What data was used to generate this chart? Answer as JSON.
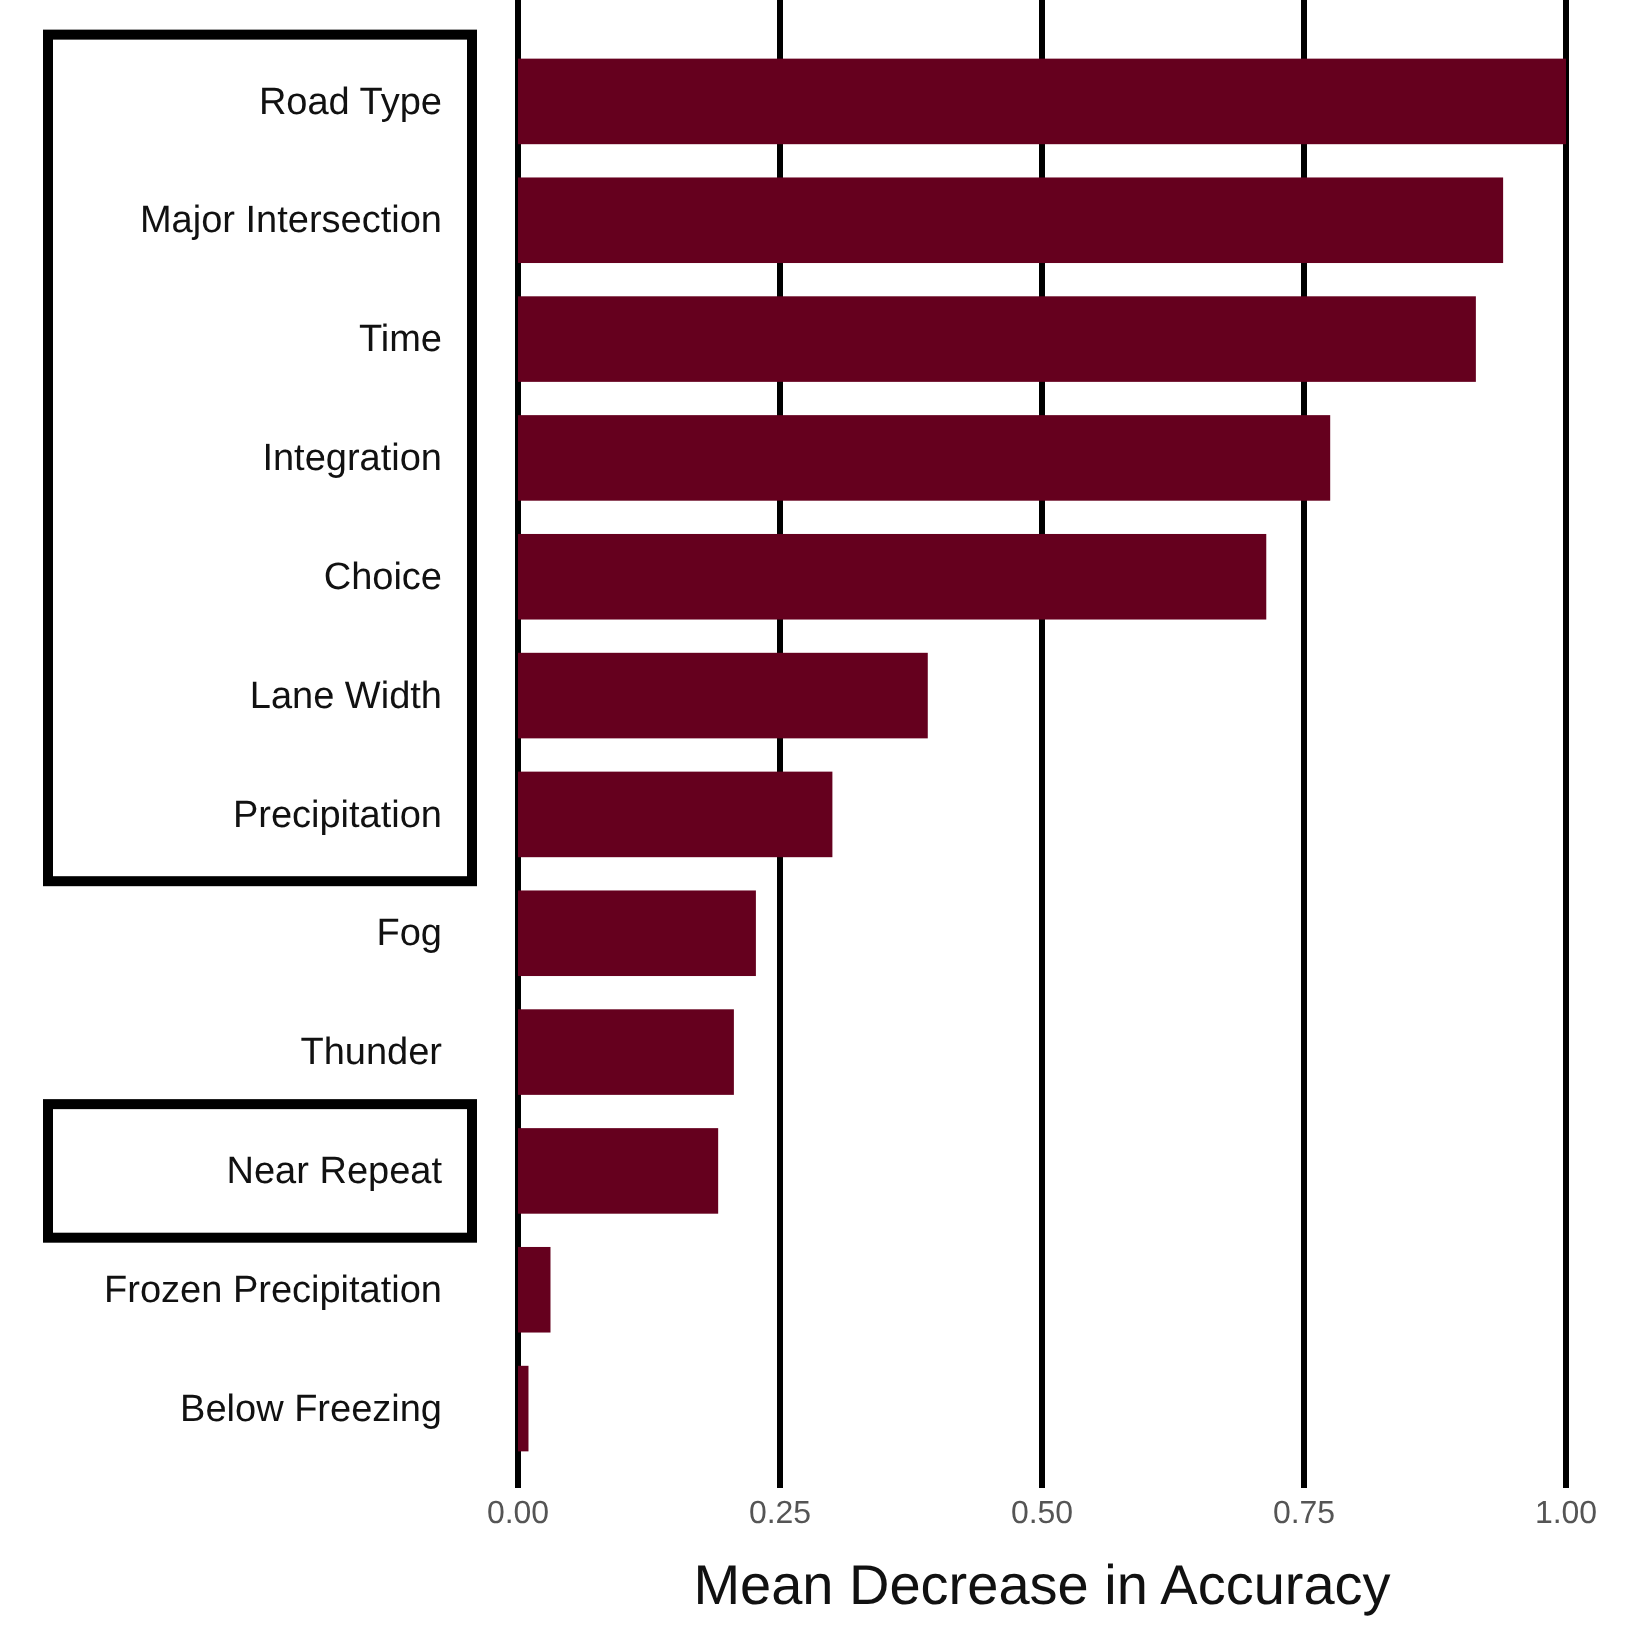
{
  "chart_data": {
    "type": "bar",
    "orientation": "horizontal",
    "xlabel": "Mean Decrease in Accuracy",
    "categories": [
      "Road Type",
      "Major Intersection",
      "Time",
      "Integration",
      "Choice",
      "Lane Width",
      "Precipitation",
      "Fog",
      "Thunder",
      "Near Repeat",
      "Frozen Precipitation",
      "Below Freezing"
    ],
    "values": [
      1.0,
      0.94,
      0.914,
      0.775,
      0.714,
      0.391,
      0.3,
      0.227,
      0.206,
      0.191,
      0.031,
      0.01
    ],
    "color": "#65001e",
    "xlim": [
      0,
      1
    ],
    "xticks": [
      {
        "value": 0,
        "label": "0.00"
      },
      {
        "value": 0.25,
        "label": "0.25"
      },
      {
        "value": 0.5,
        "label": "0.50"
      },
      {
        "value": 0.75,
        "label": "0.75"
      },
      {
        "value": 1,
        "label": "1.00"
      }
    ],
    "grid": "x"
  }
}
